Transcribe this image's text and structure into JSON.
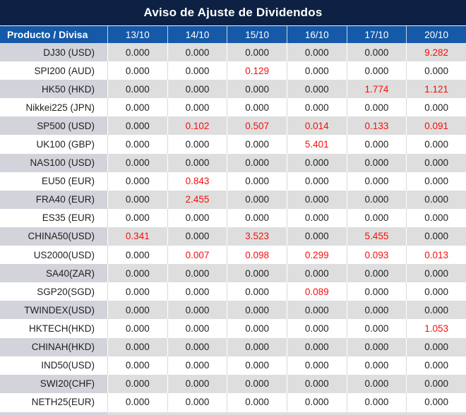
{
  "title": "Aviso de Ajuste de Dividendos",
  "table": {
    "header": {
      "product_col": "Producto / Divisa",
      "dates": [
        "13/10",
        "14/10",
        "15/10",
        "16/10",
        "17/10",
        "20/10"
      ]
    },
    "rows": [
      {
        "product": "DJ30 (USD)",
        "values": [
          "0.000",
          "0.000",
          "0.000",
          "0.000",
          "0.000",
          "9.282"
        ],
        "red_indices": [
          5
        ]
      },
      {
        "product": "SPI200 (AUD)",
        "values": [
          "0.000",
          "0.000",
          "0.129",
          "0.000",
          "0.000",
          "0.000"
        ],
        "red_indices": [
          2
        ]
      },
      {
        "product": "HK50 (HKD)",
        "values": [
          "0.000",
          "0.000",
          "0.000",
          "0.000",
          "1.774",
          "1.121"
        ],
        "red_indices": [
          4,
          5
        ]
      },
      {
        "product": "Nikkei225 (JPN)",
        "values": [
          "0.000",
          "0.000",
          "0.000",
          "0.000",
          "0.000",
          "0.000"
        ],
        "red_indices": []
      },
      {
        "product": "SP500 (USD)",
        "values": [
          "0.000",
          "0.102",
          "0.507",
          "0.014",
          "0.133",
          "0.091"
        ],
        "red_indices": [
          1,
          2,
          3,
          4,
          5
        ]
      },
      {
        "product": "UK100 (GBP)",
        "values": [
          "0.000",
          "0.000",
          "0.000",
          "5.401",
          "0.000",
          "0.000"
        ],
        "red_indices": [
          3
        ]
      },
      {
        "product": "NAS100 (USD)",
        "values": [
          "0.000",
          "0.000",
          "0.000",
          "0.000",
          "0.000",
          "0.000"
        ],
        "red_indices": []
      },
      {
        "product": "EU50 (EUR)",
        "values": [
          "0.000",
          "0.843",
          "0.000",
          "0.000",
          "0.000",
          "0.000"
        ],
        "red_indices": [
          1
        ]
      },
      {
        "product": "FRA40 (EUR)",
        "values": [
          "0.000",
          "2.455",
          "0.000",
          "0.000",
          "0.000",
          "0.000"
        ],
        "red_indices": [
          1
        ]
      },
      {
        "product": "ES35 (EUR)",
        "values": [
          "0.000",
          "0.000",
          "0.000",
          "0.000",
          "0.000",
          "0.000"
        ],
        "red_indices": []
      },
      {
        "product": "CHINA50(USD)",
        "values": [
          "0.341",
          "0.000",
          "3.523",
          "0.000",
          "5.455",
          "0.000"
        ],
        "red_indices": [
          0,
          2,
          4
        ]
      },
      {
        "product": "US2000(USD)",
        "values": [
          "0.000",
          "0.007",
          "0.098",
          "0.299",
          "0.093",
          "0.013"
        ],
        "red_indices": [
          1,
          2,
          3,
          4,
          5
        ]
      },
      {
        "product": "SA40(ZAR)",
        "values": [
          "0.000",
          "0.000",
          "0.000",
          "0.000",
          "0.000",
          "0.000"
        ],
        "red_indices": []
      },
      {
        "product": "SGP20(SGD)",
        "values": [
          "0.000",
          "0.000",
          "0.000",
          "0.089",
          "0.000",
          "0.000"
        ],
        "red_indices": [
          3
        ]
      },
      {
        "product": "TWINDEX(USD)",
        "values": [
          "0.000",
          "0.000",
          "0.000",
          "0.000",
          "0.000",
          "0.000"
        ],
        "red_indices": []
      },
      {
        "product": "HKTECH(HKD)",
        "values": [
          "0.000",
          "0.000",
          "0.000",
          "0.000",
          "0.000",
          "1.053"
        ],
        "red_indices": [
          5
        ]
      },
      {
        "product": "CHINAH(HKD)",
        "values": [
          "0.000",
          "0.000",
          "0.000",
          "0.000",
          "0.000",
          "0.000"
        ],
        "red_indices": []
      },
      {
        "product": "IND50(USD)",
        "values": [
          "0.000",
          "0.000",
          "0.000",
          "0.000",
          "0.000",
          "0.000"
        ],
        "red_indices": []
      },
      {
        "product": "SWI20(CHF)",
        "values": [
          "0.000",
          "0.000",
          "0.000",
          "0.000",
          "0.000",
          "0.000"
        ],
        "red_indices": []
      },
      {
        "product": "NETH25(EUR)",
        "values": [
          "0.000",
          "0.000",
          "0.000",
          "0.000",
          "0.000",
          "0.000"
        ],
        "red_indices": []
      }
    ]
  },
  "colors": {
    "title_bg": "#0c2143",
    "header_bg": "#1559a8",
    "stripe_bg": "#dedede",
    "stripe_product_bg": "#d3d3db",
    "red_value": "#f90d0b",
    "text": "#1f1f1f"
  }
}
